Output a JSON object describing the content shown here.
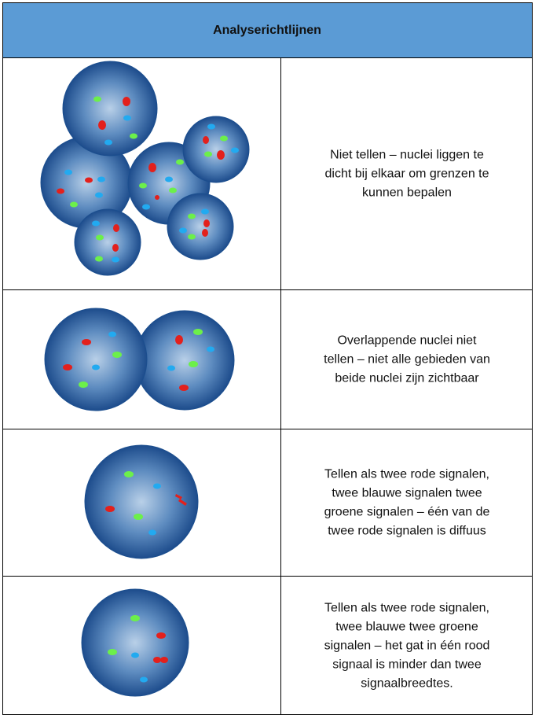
{
  "header": {
    "title": "Analyserichtlijnen"
  },
  "rows": [
    {
      "text": [
        "Niet tellen – nuclei liggen te",
        "dicht bij elkaar om grenzen te",
        "kunnen bepalen"
      ]
    },
    {
      "text": [
        "Overlappende nuclei niet",
        "tellen – niet alle gebieden van",
        "beide nuclei zijn zichtbaar"
      ]
    },
    {
      "text": [
        "Tellen als twee rode signalen,",
        "twee blauwe signalen twee",
        "groene signalen – één van de",
        "twee rode signalen is diffuus"
      ]
    },
    {
      "text": [
        "Tellen als twee rode signalen,",
        "twee blauwe twee groene",
        "signalen – het gat in één rood",
        "signaal is minder dan twee",
        "signaalbreedtes."
      ]
    }
  ]
}
